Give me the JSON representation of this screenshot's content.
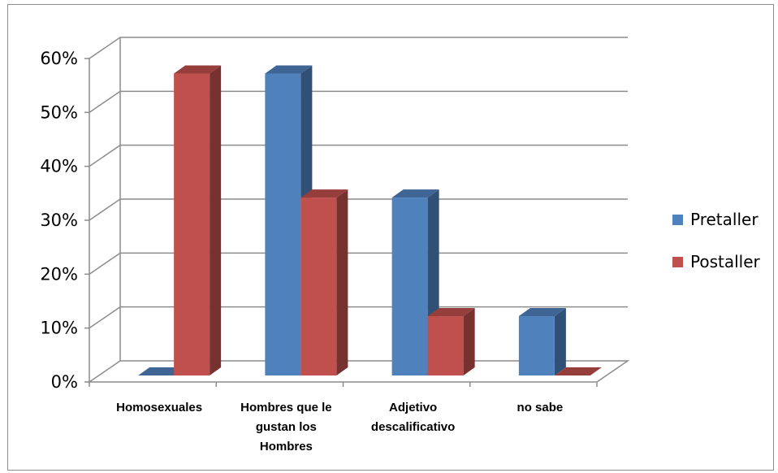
{
  "chart_data": {
    "type": "bar",
    "style": "3d-clustered-column",
    "categories": [
      [
        "Homosexuales"
      ],
      [
        "Hombres que le",
        "gustan los",
        "Hombres"
      ],
      [
        "Adjetivo",
        "descalificativo"
      ],
      [
        "no sabe"
      ]
    ],
    "series": [
      {
        "name": "Pretaller",
        "color": "#4f81bd",
        "values": [
          0,
          56,
          33,
          11
        ]
      },
      {
        "name": "Postaller",
        "color": "#c0504d",
        "values": [
          56,
          33,
          11,
          0
        ]
      }
    ],
    "y_ticks": [
      "0%",
      "10%",
      "20%",
      "30%",
      "40%",
      "50%",
      "60%"
    ],
    "ylim": [
      0,
      60
    ],
    "grid": true,
    "legend_position": "right"
  }
}
